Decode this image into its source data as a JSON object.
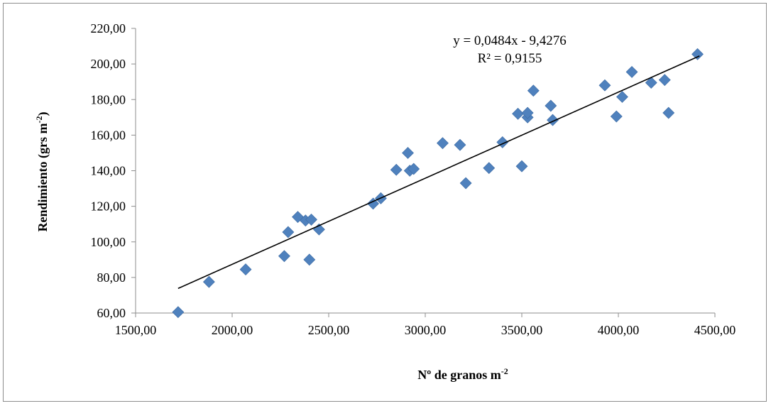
{
  "chart_data": {
    "type": "scatter",
    "title": "",
    "xlabel": "Nº de granos m",
    "xlabel_sup": "-2",
    "ylabel": "Rendimiento (grs m",
    "ylabel_sup": "-2",
    "ylabel_end": ")",
    "xlim": [
      1500,
      4500
    ],
    "ylim": [
      60,
      220
    ],
    "x_ticks": [
      1500,
      2000,
      2500,
      3000,
      3500,
      4000,
      4500
    ],
    "x_tick_labels": [
      "1500,00",
      "2000,00",
      "2500,00",
      "3000,00",
      "3500,00",
      "4000,00",
      "4500,00"
    ],
    "y_ticks": [
      60,
      80,
      100,
      120,
      140,
      160,
      180,
      200,
      220
    ],
    "y_tick_labels": [
      "60,00",
      "80,00",
      "100,00",
      "120,00",
      "140,00",
      "160,00",
      "180,00",
      "200,00",
      "220,00"
    ],
    "grid": false,
    "marker_color": "#4f81bd",
    "trendline_color": "#000000",
    "trendline": {
      "type": "linear",
      "slope": 0.0484,
      "intercept": -9.4276,
      "x_range": [
        1720,
        4420
      ],
      "equation_label": "y = 0,0484x - 9,4276",
      "r2_label": "R² = 0,9155"
    },
    "points": [
      {
        "x": 1720,
        "y": 60.5
      },
      {
        "x": 1880,
        "y": 77.5
      },
      {
        "x": 2070,
        "y": 84.5
      },
      {
        "x": 2270,
        "y": 92
      },
      {
        "x": 2290,
        "y": 105.5
      },
      {
        "x": 2340,
        "y": 114
      },
      {
        "x": 2380,
        "y": 112
      },
      {
        "x": 2400,
        "y": 90
      },
      {
        "x": 2410,
        "y": 112.5
      },
      {
        "x": 2450,
        "y": 107
      },
      {
        "x": 2730,
        "y": 121.5
      },
      {
        "x": 2770,
        "y": 124.5
      },
      {
        "x": 2850,
        "y": 140.5
      },
      {
        "x": 2910,
        "y": 150
      },
      {
        "x": 2920,
        "y": 140
      },
      {
        "x": 2940,
        "y": 141
      },
      {
        "x": 3090,
        "y": 155.5
      },
      {
        "x": 3180,
        "y": 154.5
      },
      {
        "x": 3210,
        "y": 133
      },
      {
        "x": 3330,
        "y": 141.5
      },
      {
        "x": 3400,
        "y": 156
      },
      {
        "x": 3480,
        "y": 172
      },
      {
        "x": 3500,
        "y": 142.5
      },
      {
        "x": 3530,
        "y": 170
      },
      {
        "x": 3530,
        "y": 172.5
      },
      {
        "x": 3560,
        "y": 185
      },
      {
        "x": 3650,
        "y": 176.5
      },
      {
        "x": 3660,
        "y": 168.5
      },
      {
        "x": 3930,
        "y": 188
      },
      {
        "x": 3990,
        "y": 170.5
      },
      {
        "x": 4020,
        "y": 181.5
      },
      {
        "x": 4070,
        "y": 195.5
      },
      {
        "x": 4170,
        "y": 189.5
      },
      {
        "x": 4240,
        "y": 191
      },
      {
        "x": 4260,
        "y": 172.5
      },
      {
        "x": 4410,
        "y": 205.5
      }
    ]
  }
}
